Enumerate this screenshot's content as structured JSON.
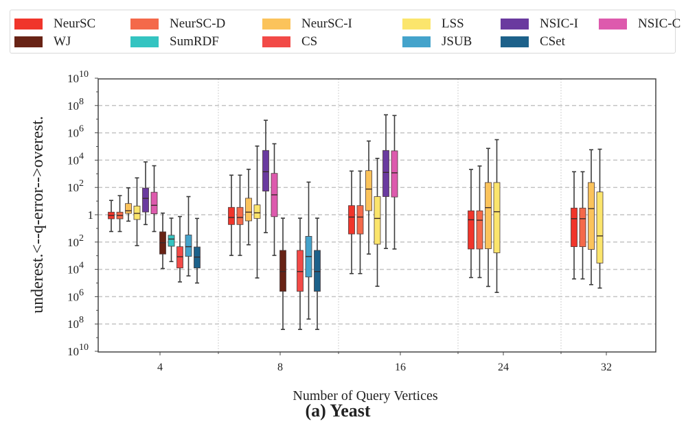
{
  "chart_data": {
    "type": "boxplot",
    "title": "",
    "caption": "(a) Yeast",
    "xlabel": "Number of Query Vertices",
    "ylabel": "underest.<--q-error-->overest.",
    "yscale": "log10 symmetric (underestimation below 1, overestimation above 1)",
    "ylim_log10": [
      -10,
      10
    ],
    "yticks": [
      {
        "log": 10,
        "base": "10",
        "exp": "10"
      },
      {
        "log": 8,
        "base": "10",
        "exp": "8"
      },
      {
        "log": 6,
        "base": "10",
        "exp": "6"
      },
      {
        "log": 4,
        "base": "10",
        "exp": "4"
      },
      {
        "log": 2,
        "base": "10",
        "exp": "2"
      },
      {
        "log": 0,
        "base": "1",
        "exp": ""
      },
      {
        "log": -2,
        "base": "10",
        "exp": "2"
      },
      {
        "log": -4,
        "base": "10",
        "exp": "4"
      },
      {
        "log": -6,
        "base": "10",
        "exp": "6"
      },
      {
        "log": -8,
        "base": "10",
        "exp": "8"
      },
      {
        "log": -10,
        "base": "10",
        "exp": "10"
      }
    ],
    "grid": "horizontal dashed every 10^2; vertical dotted between groups",
    "legend_position": "top",
    "categories": [
      "4",
      "8",
      "16",
      "24",
      "32"
    ],
    "methods": [
      {
        "name": "NeurSC",
        "color": "#f0352b"
      },
      {
        "name": "NeurSC-D",
        "color": "#f4694a"
      },
      {
        "name": "NeurSC-I",
        "color": "#fbc35b"
      },
      {
        "name": "LSS",
        "color": "#fbe56c"
      },
      {
        "name": "NSIC-I",
        "color": "#6a3a9f"
      },
      {
        "name": "NSIC-C",
        "color": "#dd5aad"
      },
      {
        "name": "WJ",
        "color": "#682315"
      },
      {
        "name": "SumRDF",
        "color": "#34c4c1"
      },
      {
        "name": "CS",
        "color": "#f24a47"
      },
      {
        "name": "JSUB",
        "color": "#44a3cb"
      },
      {
        "name": "CSet",
        "color": "#1d618a"
      }
    ],
    "value_format": "log10 of signed q-error: [whisker_low, q1, median, q3, whisker_high]",
    "series": [
      {
        "category": "4",
        "boxes": [
          {
            "method": "NeurSC",
            "stats": [
              -1.23,
              -0.3,
              -0.05,
              0.19,
              1.05
            ]
          },
          {
            "method": "NeurSC-D",
            "stats": [
              -1.23,
              -0.3,
              -0.05,
              0.19,
              1.4
            ]
          },
          {
            "method": "NeurSC-I",
            "stats": [
              -0.47,
              0.1,
              0.29,
              0.82,
              1.97
            ]
          },
          {
            "method": "LSS",
            "stats": [
              -2.26,
              -0.35,
              0.1,
              0.64,
              2.7
            ]
          },
          {
            "method": "NSIC-I",
            "stats": [
              -0.72,
              0.2,
              1.2,
              1.95,
              3.87
            ]
          },
          {
            "method": "NSIC-C",
            "stats": [
              -1.23,
              0.07,
              0.69,
              1.65,
              3.59
            ]
          },
          {
            "method": "WJ",
            "stats": [
              -3.94,
              -2.88,
              -2.05,
              -1.25,
              0.12
            ]
          },
          {
            "method": "SumRDF",
            "stats": [
              -3.43,
              -2.31,
              -1.78,
              -1.5,
              -0.25
            ]
          },
          {
            "method": "CS",
            "stats": [
              -4.92,
              -3.9,
              -3.08,
              -2.34,
              -0.13
            ]
          },
          {
            "method": "JSUB",
            "stats": [
              -4.48,
              -3.05,
              -2.34,
              -1.48,
              1.33
            ]
          },
          {
            "method": "CSet",
            "stats": [
              -5.0,
              -3.9,
              -3.1,
              -2.36,
              -0.27
            ]
          }
        ]
      },
      {
        "category": "8",
        "boxes": [
          {
            "method": "NeurSC",
            "stats": [
              -2.98,
              -0.72,
              -0.2,
              0.54,
              2.9
            ]
          },
          {
            "method": "NeurSC-D",
            "stats": [
              -2.98,
              -0.72,
              -0.2,
              0.54,
              2.9
            ]
          },
          {
            "method": "NeurSC-I",
            "stats": [
              -2.2,
              -0.45,
              0.19,
              1.21,
              3.33
            ]
          },
          {
            "method": "LSS",
            "stats": [
              -4.63,
              -0.27,
              0.14,
              0.72,
              5.03
            ]
          },
          {
            "method": "NSIC-I",
            "stats": [
              -1.31,
              1.73,
              3.15,
              4.71,
              6.92
            ]
          },
          {
            "method": "NSIC-C",
            "stats": [
              -2.98,
              -0.14,
              1.46,
              3.03,
              5.2
            ]
          },
          {
            "method": "WJ",
            "stats": [
              -8.4,
              -5.61,
              -4.16,
              -2.61,
              -0.25
            ]
          },
          {
            "method": "SumRDF",
            "stats": null
          },
          {
            "method": "CS",
            "stats": [
              -8.4,
              -5.61,
              -4.16,
              -2.61,
              -0.25
            ]
          },
          {
            "method": "JSUB",
            "stats": [
              -7.64,
              -4.56,
              -3.06,
              -1.58,
              2.39
            ]
          },
          {
            "method": "CSet",
            "stats": [
              -8.4,
              -5.61,
              -4.16,
              -2.61,
              -0.25
            ]
          }
        ]
      },
      {
        "category": "16",
        "boxes": [
          {
            "method": "NeurSC",
            "stats": [
              -4.31,
              -1.41,
              -0.17,
              0.67,
              3.2
            ]
          },
          {
            "method": "NeurSC-D",
            "stats": [
              -4.31,
              -1.41,
              -0.17,
              0.67,
              3.2
            ]
          },
          {
            "method": "NeurSC-I",
            "stats": [
              -2.88,
              0.3,
              1.88,
              3.23,
              5.4
            ]
          },
          {
            "method": "LSS",
            "stats": [
              -5.24,
              -2.16,
              -0.27,
              1.33,
              4.13
            ]
          },
          {
            "method": "NSIC-I",
            "stats": [
              -2.47,
              1.33,
              3.1,
              4.71,
              7.32
            ]
          },
          {
            "method": "NSIC-C",
            "stats": [
              -2.51,
              1.3,
              3.07,
              4.68,
              7.27
            ]
          }
        ]
      },
      {
        "category": "24",
        "boxes": [
          {
            "method": "NeurSC",
            "stats": [
              -4.6,
              -2.51,
              -0.37,
              0.29,
              3.32
            ]
          },
          {
            "method": "NeurSC-D",
            "stats": [
              -4.6,
              -2.51,
              -0.4,
              0.29,
              3.57
            ]
          },
          {
            "method": "NeurSC-I",
            "stats": [
              -5.25,
              -2.49,
              0.52,
              2.36,
              4.86
            ]
          },
          {
            "method": "LSS",
            "stats": [
              -5.69,
              -2.79,
              0.22,
              2.36,
              5.5
            ]
          }
        ]
      },
      {
        "category": "32",
        "boxes": [
          {
            "method": "NeurSC",
            "stats": [
              -4.7,
              -2.34,
              -0.29,
              0.49,
              3.15
            ]
          },
          {
            "method": "NeurSC-D",
            "stats": [
              -4.7,
              -2.34,
              -0.29,
              0.49,
              3.15
            ]
          },
          {
            "method": "NeurSC-I",
            "stats": [
              -5.12,
              -2.54,
              0.45,
              2.36,
              4.76
            ]
          },
          {
            "method": "LSS",
            "stats": [
              -5.37,
              -3.54,
              -1.55,
              1.67,
              4.8
            ]
          }
        ]
      }
    ]
  },
  "legend": {
    "rows": [
      [
        "NeurSC",
        "NeurSC-D",
        "NeurSC-I",
        "LSS",
        "NSIC-I",
        "NSIC-C"
      ],
      [
        "WJ",
        "SumRDF",
        "CS",
        "JSUB",
        "CSet"
      ]
    ]
  }
}
